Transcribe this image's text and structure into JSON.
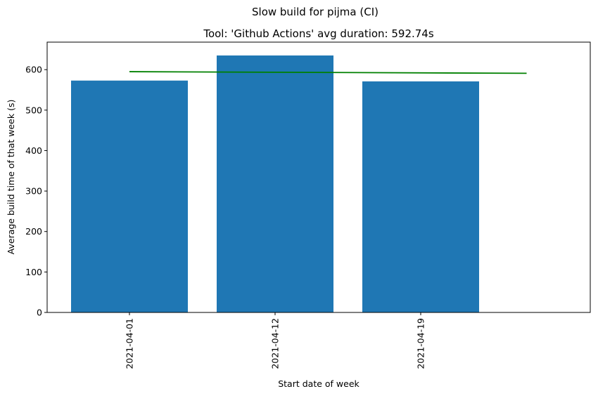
{
  "chart_data": {
    "type": "bar",
    "suptitle": "Slow build for pijma (CI)",
    "title": "Tool: 'Github Actions' avg duration: 592.74s",
    "xlabel": "Start date of week",
    "ylabel": "Average build time of that week (s)",
    "categories": [
      "2021-04-01",
      "2021-04-12",
      "2021-04-19"
    ],
    "values": [
      573,
      635,
      571
    ],
    "bar_color": "#1f77b4",
    "ylim": [
      0,
      668
    ],
    "yticks": [
      0,
      100,
      200,
      300,
      400,
      500,
      600
    ],
    "trend_line": {
      "color": "#008000",
      "x_start_date": "2021-04-01",
      "x_end_date": "2021-05-01",
      "y_start": 595,
      "y_end": 591
    },
    "grid": false,
    "legend": "none"
  }
}
